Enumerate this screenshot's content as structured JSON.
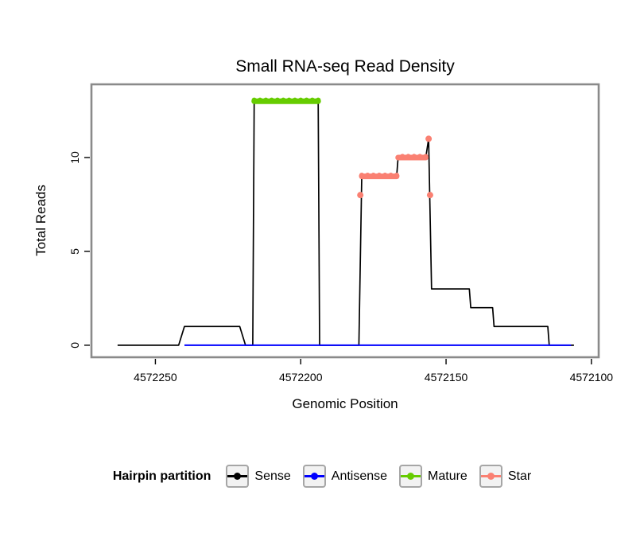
{
  "page": {
    "background": "#FFFFFF"
  },
  "chart_data": {
    "type": "line",
    "title": "Small RNA-seq Read Density",
    "xlabel": "Genomic Position",
    "ylabel": "Total Reads",
    "x_axis_reversed": true,
    "grid": false,
    "xlim": [
      4572272,
      4572097.5
    ],
    "ylim": [
      -0.64,
      13.9
    ],
    "x_ticks": [
      4572250,
      4572200,
      4572150,
      4572100
    ],
    "y_ticks": [
      0,
      5,
      10
    ],
    "series": [
      {
        "name": "Sense",
        "color": "#000000",
        "linewidth": 1.7,
        "points": [
          [
            4572263,
            0
          ],
          [
            4572242,
            0
          ],
          [
            4572240,
            1
          ],
          [
            4572221,
            1
          ],
          [
            4572219,
            0
          ],
          [
            4572216.5,
            0
          ],
          [
            4572216,
            13
          ],
          [
            4572194,
            13
          ],
          [
            4572193.5,
            0
          ],
          [
            4572180,
            0
          ],
          [
            4572179,
            9
          ],
          [
            4572167,
            9
          ],
          [
            4572166.5,
            10
          ],
          [
            4572157,
            10
          ],
          [
            4572156,
            11
          ],
          [
            4572155,
            3
          ],
          [
            4572142,
            3
          ],
          [
            4572141.5,
            2
          ],
          [
            4572134,
            2
          ],
          [
            4572133.5,
            1
          ],
          [
            4572115,
            1
          ],
          [
            4572114.5,
            0
          ],
          [
            4572106,
            0
          ]
        ]
      },
      {
        "name": "Antisense",
        "color": "#0000FF",
        "linewidth": 2,
        "points": [
          [
            4572240,
            0
          ],
          [
            4572107,
            0
          ]
        ]
      }
    ],
    "segments": [
      {
        "name": "Mature",
        "color": "#66CC00",
        "y": 13,
        "x1": 4572216,
        "x2": 4572194
      },
      {
        "name": "Star",
        "color": "#FA8072",
        "y": 9,
        "x1": 4572179,
        "x2": 4572167
      },
      {
        "name": "Star",
        "color": "#FA8072",
        "y": 10,
        "x1": 4572166.5,
        "x2": 4572157
      }
    ],
    "markers": [
      {
        "name": "Star",
        "color": "#FA8072",
        "x": 4572179.5,
        "y": 8
      },
      {
        "name": "Star",
        "color": "#FA8072",
        "x": 4572156,
        "y": 11
      },
      {
        "name": "Star",
        "color": "#FA8072",
        "x": 4572155.5,
        "y": 8
      }
    ]
  },
  "legend": {
    "title": "Hairpin partition",
    "entries": [
      {
        "label": "Sense",
        "color": "#000000"
      },
      {
        "label": "Antisense",
        "color": "#0000FF"
      },
      {
        "label": "Mature",
        "color": "#66CC00"
      },
      {
        "label": "Star",
        "color": "#FA8072"
      }
    ]
  }
}
